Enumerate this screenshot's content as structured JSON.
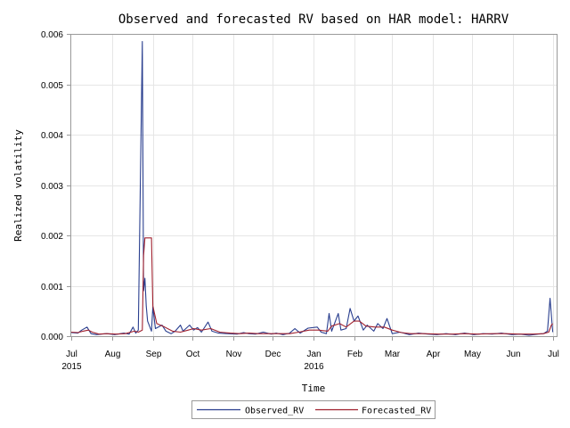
{
  "chart_data": {
    "type": "line",
    "title": "Observed and forecasted RV based on HAR model: HARRV",
    "xlabel": "Time",
    "ylabel": "Realized volatility",
    "ylim": [
      0,
      0.006
    ],
    "yticks": [
      "0.000",
      "0.001",
      "0.002",
      "0.003",
      "0.004",
      "0.005",
      "0.006"
    ],
    "xlim": [
      "2015-07-01",
      "2016-07-04"
    ],
    "xticks": [
      {
        "date": "2015-07-01",
        "label": "Jul",
        "sub": "2015"
      },
      {
        "date": "2015-08-01",
        "label": "Aug",
        "sub": ""
      },
      {
        "date": "2015-09-01",
        "label": "Sep",
        "sub": ""
      },
      {
        "date": "2015-10-01",
        "label": "Oct",
        "sub": ""
      },
      {
        "date": "2015-11-01",
        "label": "Nov",
        "sub": ""
      },
      {
        "date": "2015-12-01",
        "label": "Dec",
        "sub": ""
      },
      {
        "date": "2016-01-01",
        "label": "Jan",
        "sub": "2016"
      },
      {
        "date": "2016-02-01",
        "label": "Feb",
        "sub": ""
      },
      {
        "date": "2016-03-01",
        "label": "Mar",
        "sub": ""
      },
      {
        "date": "2016-04-01",
        "label": "Apr",
        "sub": ""
      },
      {
        "date": "2016-05-01",
        "label": "May",
        "sub": ""
      },
      {
        "date": "2016-06-01",
        "label": "Jun",
        "sub": ""
      },
      {
        "date": "2016-07-01",
        "label": "Jul",
        "sub": ""
      }
    ],
    "grid": true,
    "legend": "bottom",
    "series": [
      {
        "name": "Observed_RV",
        "color": "#2a3f8f",
        "points": [
          [
            "2015-07-01",
            7e-05
          ],
          [
            "2015-07-06",
            6e-05
          ],
          [
            "2015-07-09",
            0.00012
          ],
          [
            "2015-07-13",
            0.00018
          ],
          [
            "2015-07-16",
            5e-05
          ],
          [
            "2015-07-20",
            3e-05
          ],
          [
            "2015-07-24",
            4e-05
          ],
          [
            "2015-07-28",
            5e-05
          ],
          [
            "2015-08-03",
            3e-05
          ],
          [
            "2015-08-10",
            6e-05
          ],
          [
            "2015-08-14",
            4e-05
          ],
          [
            "2015-08-17",
            0.00018
          ],
          [
            "2015-08-19",
            6e-05
          ],
          [
            "2015-08-21",
            0.00012
          ],
          [
            "2015-08-24",
            0.00585
          ],
          [
            "2015-08-25",
            0.0009
          ],
          [
            "2015-08-26",
            0.00115
          ],
          [
            "2015-08-27",
            0.0006
          ],
          [
            "2015-08-28",
            0.0003
          ],
          [
            "2015-08-31",
            0.0001
          ],
          [
            "2015-09-01",
            0.00058
          ],
          [
            "2015-09-03",
            0.00015
          ],
          [
            "2015-09-08",
            0.00022
          ],
          [
            "2015-09-11",
            0.0001
          ],
          [
            "2015-09-15",
            5e-05
          ],
          [
            "2015-09-18",
            0.0001
          ],
          [
            "2015-09-22",
            0.00022
          ],
          [
            "2015-09-24",
            0.0001
          ],
          [
            "2015-09-29",
            0.00022
          ],
          [
            "2015-10-02",
            0.00012
          ],
          [
            "2015-10-05",
            0.00017
          ],
          [
            "2015-10-08",
            8e-05
          ],
          [
            "2015-10-13",
            0.00028
          ],
          [
            "2015-10-16",
            0.0001
          ],
          [
            "2015-10-21",
            6e-05
          ],
          [
            "2015-10-28",
            5e-05
          ],
          [
            "2015-11-04",
            4e-05
          ],
          [
            "2015-11-09",
            7e-05
          ],
          [
            "2015-11-13",
            5e-05
          ],
          [
            "2015-11-18",
            4e-05
          ],
          [
            "2015-11-24",
            8e-05
          ],
          [
            "2015-11-30",
            4e-05
          ],
          [
            "2015-12-04",
            6e-05
          ],
          [
            "2015-12-09",
            3e-05
          ],
          [
            "2015-12-14",
            6e-05
          ],
          [
            "2015-12-18",
            0.00015
          ],
          [
            "2015-12-22",
            6e-05
          ],
          [
            "2015-12-28",
            0.00016
          ],
          [
            "2016-01-04",
            0.00018
          ],
          [
            "2016-01-07",
            8e-05
          ],
          [
            "2016-01-11",
            5e-05
          ],
          [
            "2016-01-13",
            0.00045
          ],
          [
            "2016-01-15",
            0.0001
          ],
          [
            "2016-01-20",
            0.00045
          ],
          [
            "2016-01-22",
            0.00012
          ],
          [
            "2016-01-26",
            0.00015
          ],
          [
            "2016-01-29",
            0.00055
          ],
          [
            "2016-02-01",
            0.0003
          ],
          [
            "2016-02-04",
            0.0004
          ],
          [
            "2016-02-08",
            0.00012
          ],
          [
            "2016-02-11",
            0.00022
          ],
          [
            "2016-02-16",
            0.0001
          ],
          [
            "2016-02-19",
            0.00025
          ],
          [
            "2016-02-23",
            0.00015
          ],
          [
            "2016-02-26",
            0.00035
          ],
          [
            "2016-03-01",
            5e-05
          ],
          [
            "2016-03-07",
            8e-05
          ],
          [
            "2016-03-14",
            3e-05
          ],
          [
            "2016-03-21",
            6e-05
          ],
          [
            "2016-03-28",
            4e-05
          ],
          [
            "2016-04-04",
            3e-05
          ],
          [
            "2016-04-11",
            5e-05
          ],
          [
            "2016-04-18",
            3e-05
          ],
          [
            "2016-04-25",
            6e-05
          ],
          [
            "2016-05-02",
            3e-05
          ],
          [
            "2016-05-09",
            5e-05
          ],
          [
            "2016-05-16",
            4e-05
          ],
          [
            "2016-05-23",
            6e-05
          ],
          [
            "2016-05-31",
            3e-05
          ],
          [
            "2016-06-06",
            4e-05
          ],
          [
            "2016-06-13",
            2e-05
          ],
          [
            "2016-06-20",
            4e-05
          ],
          [
            "2016-06-24",
            5e-05
          ],
          [
            "2016-06-27",
            0.0001
          ],
          [
            "2016-06-29",
            0.00075
          ],
          [
            "2016-07-01",
            8e-05
          ]
        ]
      },
      {
        "name": "Forecasted_RV",
        "color": "#a0212e",
        "points": [
          [
            "2015-07-01",
            8e-05
          ],
          [
            "2015-07-06",
            7e-05
          ],
          [
            "2015-07-10",
            0.0001
          ],
          [
            "2015-07-14",
            0.00012
          ],
          [
            "2015-07-17",
            8e-05
          ],
          [
            "2015-07-22",
            4e-05
          ],
          [
            "2015-07-28",
            5e-05
          ],
          [
            "2015-08-04",
            4e-05
          ],
          [
            "2015-08-11",
            5e-05
          ],
          [
            "2015-08-18",
            0.0001
          ],
          [
            "2015-08-21",
            8e-05
          ],
          [
            "2015-08-24",
            0.00012
          ],
          [
            "2015-08-25",
            0.0016
          ],
          [
            "2015-08-26",
            0.00195
          ],
          [
            "2015-08-28",
            0.00195
          ],
          [
            "2015-08-31",
            0.00195
          ],
          [
            "2015-09-01",
            0.0006
          ],
          [
            "2015-09-04",
            0.00025
          ],
          [
            "2015-09-10",
            0.00018
          ],
          [
            "2015-09-16",
            0.0001
          ],
          [
            "2015-09-22",
            8e-05
          ],
          [
            "2015-09-28",
            0.00012
          ],
          [
            "2015-10-02",
            0.00015
          ],
          [
            "2015-10-08",
            0.00012
          ],
          [
            "2015-10-15",
            0.00015
          ],
          [
            "2015-10-22",
            8e-05
          ],
          [
            "2015-10-30",
            6e-05
          ],
          [
            "2015-11-06",
            5e-05
          ],
          [
            "2015-11-13",
            6e-05
          ],
          [
            "2015-11-20",
            5e-05
          ],
          [
            "2015-11-30",
            5e-05
          ],
          [
            "2015-12-07",
            5e-05
          ],
          [
            "2015-12-14",
            5e-05
          ],
          [
            "2015-12-21",
            8e-05
          ],
          [
            "2015-12-29",
            0.00012
          ],
          [
            "2016-01-05",
            0.00012
          ],
          [
            "2016-01-12",
            0.0001
          ],
          [
            "2016-01-15",
            0.0002
          ],
          [
            "2016-01-21",
            0.00025
          ],
          [
            "2016-01-26",
            0.00018
          ],
          [
            "2016-02-01",
            0.0003
          ],
          [
            "2016-02-05",
            0.0003
          ],
          [
            "2016-02-10",
            0.0002
          ],
          [
            "2016-02-17",
            0.00018
          ],
          [
            "2016-02-24",
            0.00018
          ],
          [
            "2016-03-01",
            0.00012
          ],
          [
            "2016-03-08",
            7e-05
          ],
          [
            "2016-03-15",
            5e-05
          ],
          [
            "2016-03-25",
            5e-05
          ],
          [
            "2016-04-05",
            4e-05
          ],
          [
            "2016-04-15",
            4e-05
          ],
          [
            "2016-04-25",
            5e-05
          ],
          [
            "2016-05-05",
            4e-05
          ],
          [
            "2016-05-16",
            5e-05
          ],
          [
            "2016-05-26",
            5e-05
          ],
          [
            "2016-06-06",
            4e-05
          ],
          [
            "2016-06-16",
            4e-05
          ],
          [
            "2016-06-24",
            5e-05
          ],
          [
            "2016-06-28",
            8e-05
          ],
          [
            "2016-06-30",
            0.00022
          ],
          [
            "2016-07-01",
            0.00025
          ]
        ]
      }
    ]
  }
}
